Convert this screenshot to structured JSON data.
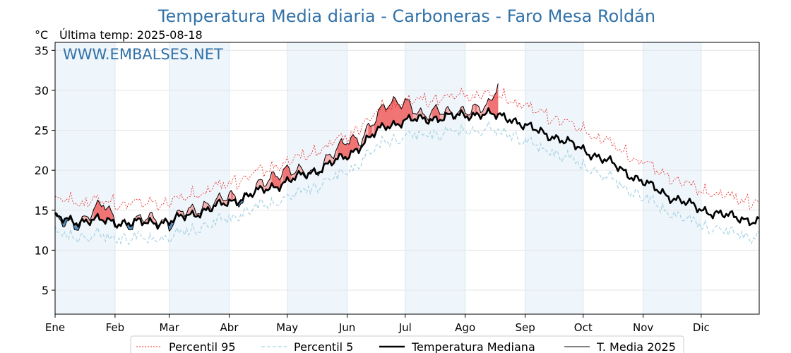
{
  "chart_data": {
    "type": "line",
    "title": "Temperatura Media diaria - Carboneras - Faro Mesa Roldán",
    "unit_label": "°C",
    "last_temp_label": "Última temp: 2025-08-18",
    "watermark": "WWW.EMBALSES.NET",
    "ylim": [
      2,
      36
    ],
    "yticks": [
      5,
      10,
      15,
      20,
      25,
      30,
      35
    ],
    "months": [
      "Ene",
      "Feb",
      "Mar",
      "Abr",
      "May",
      "Jun",
      "Jul",
      "Ago",
      "Sep",
      "Oct",
      "Nov",
      "Dic"
    ],
    "month_starts": [
      0,
      31,
      59,
      90,
      120,
      151,
      181,
      212,
      243,
      273,
      304,
      334
    ],
    "days_in_year": 365,
    "grid": true,
    "legend_position": "bottom",
    "colors": {
      "p95": "#e8241f",
      "p5": "#a7d3e3",
      "median": "#000000",
      "current": "#000000",
      "above_fill": "#f07474",
      "above_fill_soft": "#f6b3b3",
      "below_fill": "#5b8fbf",
      "band": "#eef5fb",
      "title": "#3272a8"
    },
    "anchors": {
      "median_days": [
        0,
        10,
        20,
        31,
        45,
        59,
        75,
        90,
        105,
        120,
        135,
        151,
        160,
        170,
        181,
        196,
        212,
        220,
        228,
        235,
        243,
        258,
        273,
        288,
        304,
        319,
        334,
        349,
        364
      ],
      "median_values": [
        14.0,
        13.6,
        13.8,
        13.5,
        13.4,
        13.6,
        14.8,
        16.0,
        17.3,
        18.6,
        20.0,
        21.8,
        23.5,
        25.5,
        26.2,
        26.5,
        26.9,
        27.1,
        26.8,
        26.6,
        25.5,
        24.2,
        22.6,
        20.8,
        18.5,
        16.6,
        15.1,
        14.2,
        13.6
      ],
      "p95_offset": 2.0,
      "p5_offset": -1.6,
      "current_offsets_days": [
        0,
        12,
        20,
        25,
        31,
        38,
        45,
        52,
        59,
        66,
        75,
        82,
        90,
        97,
        105,
        112,
        120,
        128,
        135,
        142,
        151,
        158,
        165,
        172,
        181,
        190,
        198,
        205,
        212,
        220,
        225,
        229
      ],
      "current_offsets_values": [
        0.0,
        -0.6,
        1.2,
        2.4,
        0.2,
        -0.6,
        0.8,
        0.5,
        -0.7,
        0.9,
        0.3,
        0.6,
        1.0,
        -0.7,
        0.9,
        1.2,
        1.4,
        0.6,
        -0.4,
        1.0,
        2.1,
        0.6,
        1.8,
        2.8,
        2.3,
        0.4,
        1.1,
        0.3,
        0.5,
        0.8,
        1.3,
        4.4
      ]
    },
    "current_last_day": 229,
    "series": [
      {
        "name": "Percentil 95"
      },
      {
        "name": "Percentil 5"
      },
      {
        "name": "Temperatura Mediana"
      },
      {
        "name": "T. Media 2025"
      }
    ]
  }
}
